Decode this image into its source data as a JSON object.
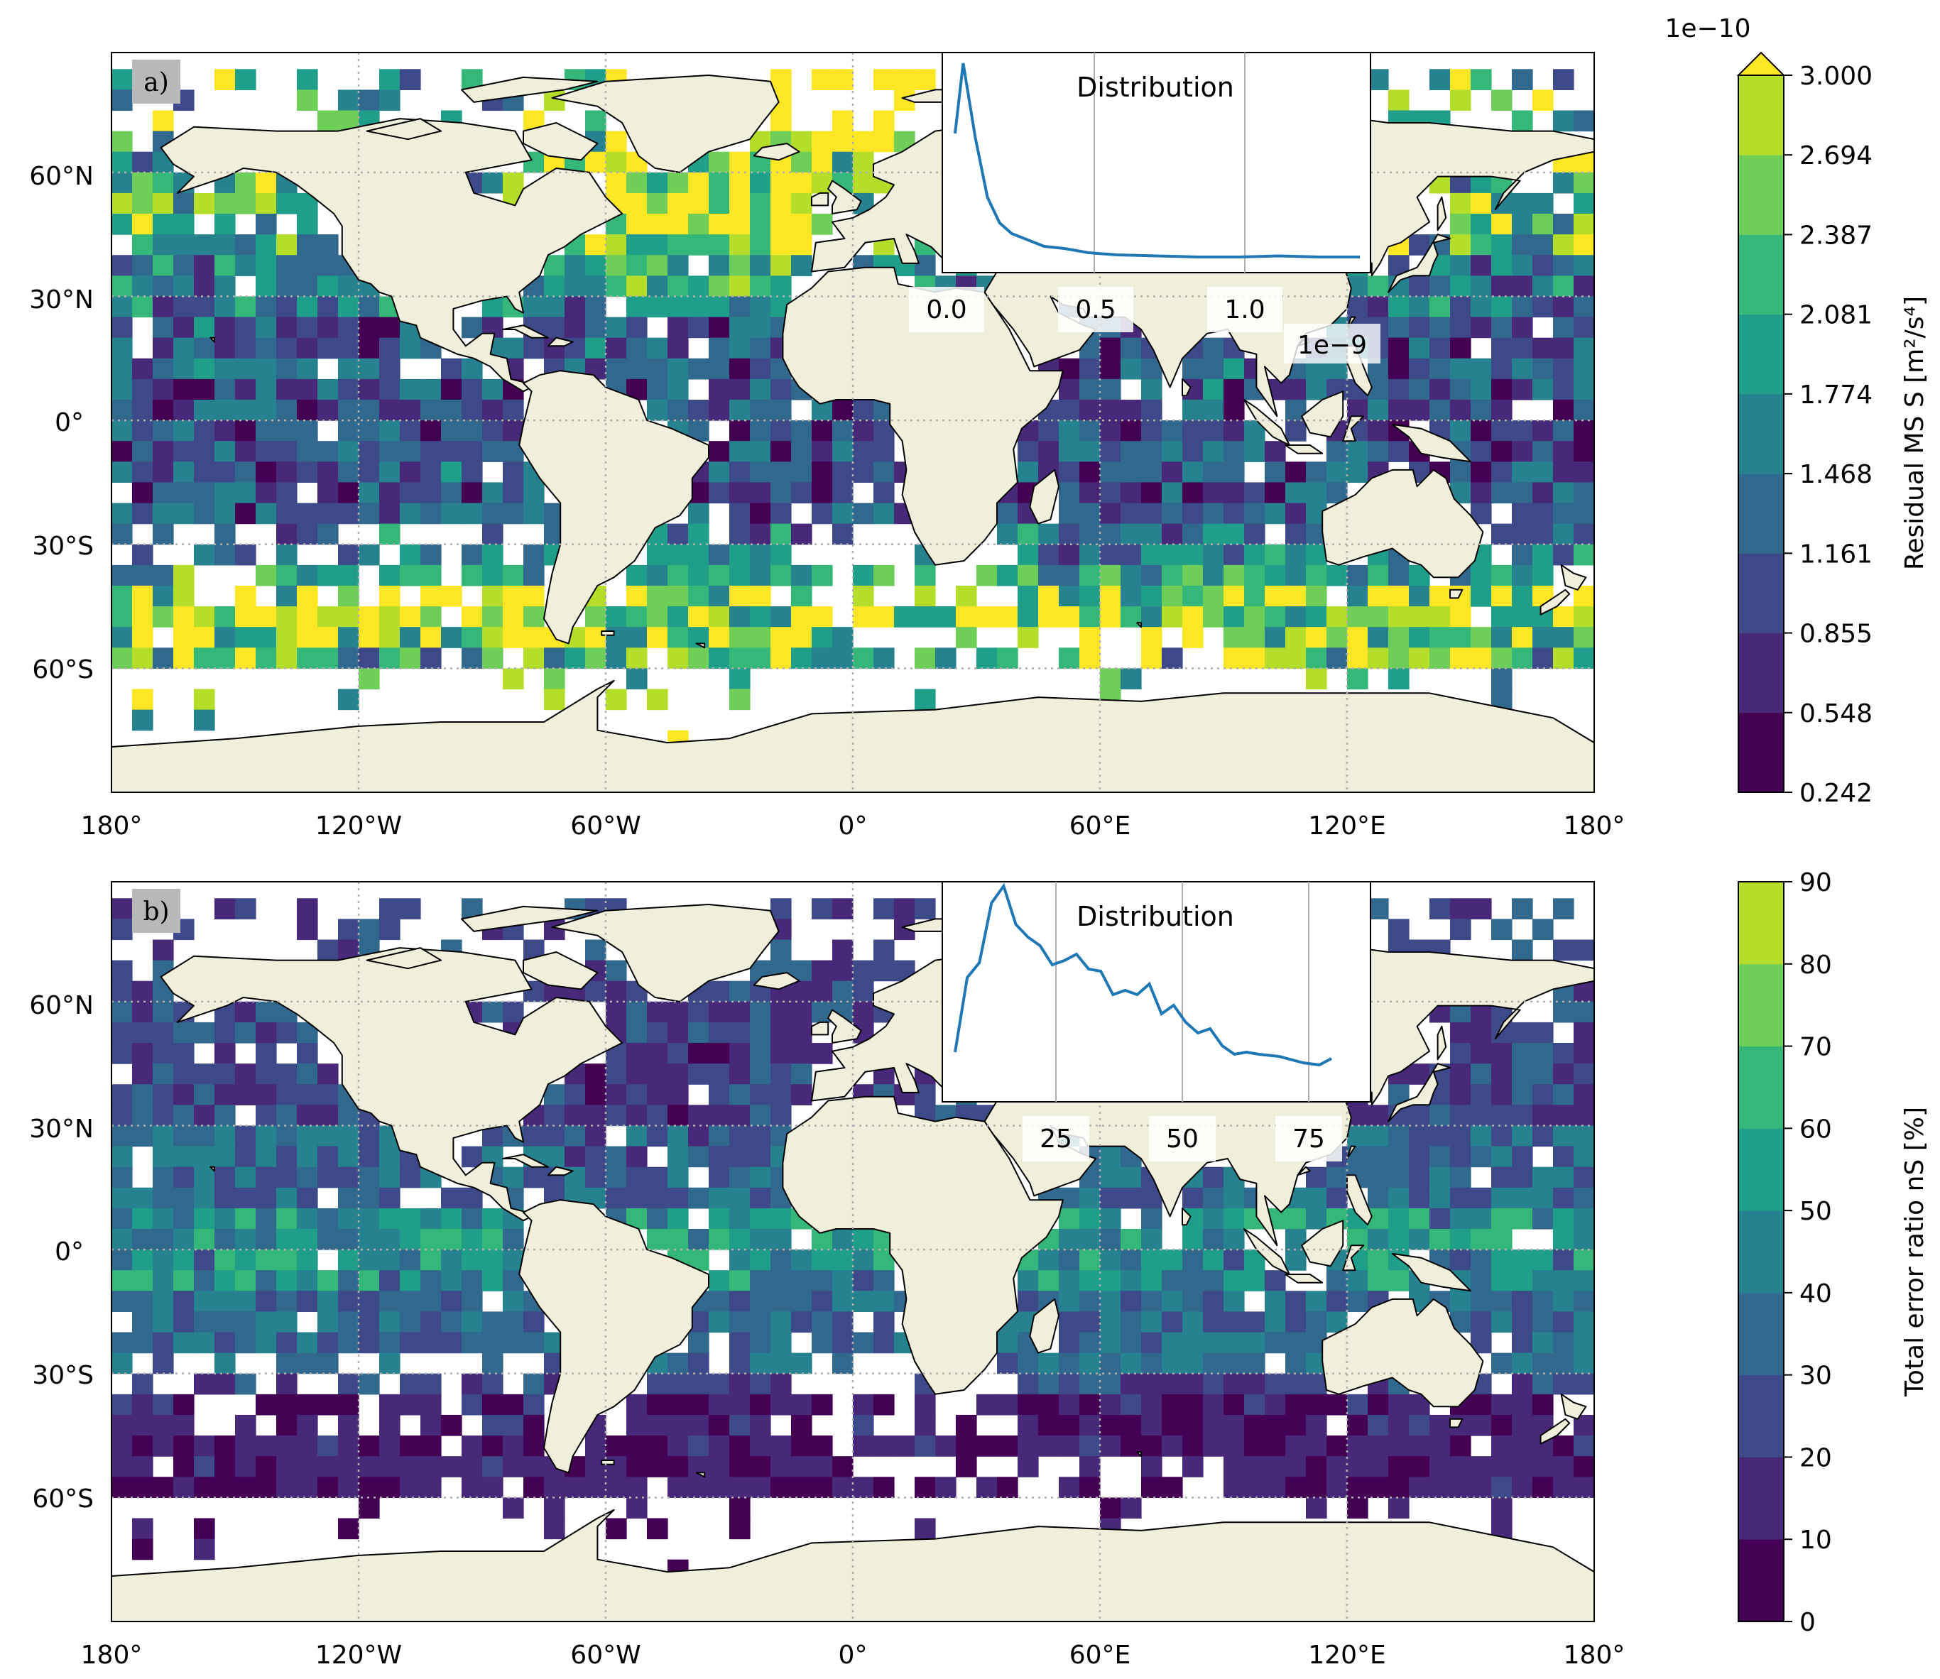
{
  "panels": [
    {
      "id": "a",
      "label": "a)",
      "lon_ticks": [
        "180°",
        "120°W",
        "60°W",
        "0°",
        "60°E",
        "120°E",
        "180°"
      ],
      "lat_ticks": [
        "60°N",
        "30°N",
        "0°",
        "30°S",
        "60°S"
      ],
      "colorbar": {
        "label": "Residual MS S [m²/s⁴]",
        "exponent": "1e−10",
        "extend": "max",
        "ticks": [
          "0.242",
          "0.548",
          "0.855",
          "1.161",
          "1.468",
          "1.774",
          "2.081",
          "2.387",
          "2.694",
          "3.000"
        ],
        "colors": [
          "#440154",
          "#482878",
          "#3e4989",
          "#31688e",
          "#26828e",
          "#1f9e89",
          "#35b779",
          "#6ece58",
          "#b5de2b"
        ],
        "extend_color": "#fde725"
      },
      "inset": {
        "title": "Distribution",
        "x_ticks": [
          "0.0",
          "0.5",
          "1.0"
        ],
        "x_multiplier": "1e−9",
        "line_color": "#1f77b4"
      }
    },
    {
      "id": "b",
      "label": "b)",
      "lon_ticks": [
        "180°",
        "120°W",
        "60°W",
        "0°",
        "60°E",
        "120°E",
        "180°"
      ],
      "lat_ticks": [
        "60°N",
        "30°N",
        "0°",
        "30°S",
        "60°S"
      ],
      "colorbar": {
        "label": "Total error ratio nS [%]",
        "ticks": [
          "0",
          "10",
          "20",
          "30",
          "40",
          "50",
          "60",
          "70",
          "80",
          "90"
        ],
        "colors": [
          "#440154",
          "#482878",
          "#3e4989",
          "#31688e",
          "#26828e",
          "#1f9e89",
          "#35b779",
          "#6ece58",
          "#b5de2b"
        ]
      },
      "inset": {
        "title": "Distribution",
        "x_ticks": [
          "25",
          "50",
          "75"
        ],
        "line_color": "#1f77b4"
      }
    }
  ],
  "style": {
    "land_color": "#efefdb",
    "ocean_color": "#ffffff",
    "grid_color": "#b0b0b0"
  }
}
